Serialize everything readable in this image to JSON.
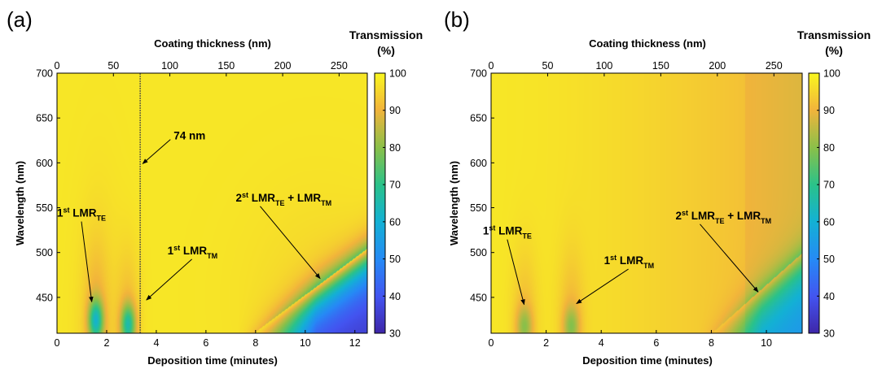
{
  "chart_data": [
    {
      "type": "heatmap",
      "panel_label": "(a)",
      "top_axis_title": "Coating thickness (nm)",
      "top_ticks": [
        "0",
        "50",
        "100",
        "150",
        "200",
        "250"
      ],
      "top_tick_values": [
        0,
        50,
        100,
        150,
        200,
        250
      ],
      "top_range": [
        0,
        275
      ],
      "xlabel": "Deposition time (minutes)",
      "x_ticks": [
        "0",
        "2",
        "4",
        "6",
        "8",
        "10",
        "12"
      ],
      "x_tick_values": [
        0,
        2,
        4,
        6,
        8,
        10,
        12
      ],
      "xlim": [
        0,
        12.5
      ],
      "ylabel": "Wavelength (nm)",
      "y_ticks": [
        "450",
        "500",
        "550",
        "600",
        "650",
        "700"
      ],
      "y_tick_values": [
        450,
        500,
        550,
        600,
        650,
        700
      ],
      "ylim": [
        410,
        700
      ],
      "colorbar_title_line1": "Transmission",
      "colorbar_title_line2": "(%)",
      "colorbar_ticks": [
        "30",
        "40",
        "50",
        "60",
        "70",
        "80",
        "90",
        "100"
      ],
      "colorbar_range": [
        30,
        100
      ],
      "vertical_line_x": 3.35,
      "annotations": [
        {
          "parts": [
            [
              "1",
              ""
            ],
            [
              "st",
              "sup"
            ],
            [
              " LMR",
              ""
            ],
            [
              "TE",
              "sub"
            ]
          ],
          "text_x": 0.0,
          "text_y": 540,
          "arrow_to_x": 1.4,
          "arrow_to_y": 445
        },
        {
          "parts": [
            [
              "74 nm",
              ""
            ]
          ],
          "text_x": 4.7,
          "text_y": 626,
          "arrow_to_x": 3.45,
          "arrow_to_y": 599
        },
        {
          "parts": [
            [
              "1",
              ""
            ],
            [
              "st",
              "sup"
            ],
            [
              " LMR",
              ""
            ],
            [
              "TM",
              "sub"
            ]
          ],
          "text_x": 4.45,
          "text_y": 498,
          "arrow_to_x": 3.6,
          "arrow_to_y": 447
        },
        {
          "parts": [
            [
              "2",
              ""
            ],
            [
              "st",
              "sup"
            ],
            [
              " LMR",
              ""
            ],
            [
              "TE",
              "sub"
            ],
            [
              " + LMR",
              ""
            ],
            [
              "TM",
              "sub"
            ]
          ],
          "text_x": 7.2,
          "text_y": 557,
          "arrow_to_x": 10.6,
          "arrow_to_y": 471
        }
      ],
      "features": [
        {
          "kind": "dip",
          "x": 1.55,
          "y": 425,
          "min": 70
        },
        {
          "kind": "dip",
          "x": 2.85,
          "y": 420,
          "min": 72
        },
        {
          "kind": "band",
          "start_x": 7.9,
          "end_x": 12.5,
          "y_at_start": 410,
          "y_at_end": 505,
          "min": 35
        }
      ]
    },
    {
      "type": "heatmap",
      "panel_label": "(b)",
      "top_axis_title": "Coating thickness (nm)",
      "top_ticks": [
        "0",
        "50",
        "100",
        "150",
        "200",
        "250"
      ],
      "top_tick_values": [
        0,
        50,
        100,
        150,
        200,
        250
      ],
      "top_range": [
        0,
        275
      ],
      "xlabel": "Deposition time (minutes)",
      "x_ticks": [
        "0",
        "2",
        "4",
        "6",
        "8",
        "10"
      ],
      "x_tick_values": [
        0,
        2,
        4,
        6,
        8,
        10
      ],
      "xlim": [
        0,
        11.3
      ],
      "ylabel": "Wavelength (nm)",
      "y_ticks": [
        "450",
        "500",
        "550",
        "600",
        "650",
        "700"
      ],
      "y_tick_values": [
        450,
        500,
        550,
        600,
        650,
        700
      ],
      "ylim": [
        410,
        700
      ],
      "colorbar_title_line1": "Transmission",
      "colorbar_title_line2": "(%)",
      "colorbar_ticks": [
        "30",
        "40",
        "50",
        "60",
        "70",
        "80",
        "90",
        "100"
      ],
      "colorbar_range": [
        30,
        100
      ],
      "annotations": [
        {
          "parts": [
            [
              "1",
              ""
            ],
            [
              "st",
              "sup"
            ],
            [
              " LMR",
              ""
            ],
            [
              "TE",
              "sub"
            ]
          ],
          "text_x": -0.3,
          "text_y": 520,
          "arrow_to_x": 1.2,
          "arrow_to_y": 442
        },
        {
          "parts": [
            [
              "1",
              ""
            ],
            [
              "st",
              "sup"
            ],
            [
              " LMR",
              ""
            ],
            [
              "TM",
              "sub"
            ]
          ],
          "text_x": 4.1,
          "text_y": 487,
          "arrow_to_x": 3.1,
          "arrow_to_y": 443
        },
        {
          "parts": [
            [
              "2",
              ""
            ],
            [
              "st",
              "sup"
            ],
            [
              " LMR",
              ""
            ],
            [
              "TE",
              "sub"
            ],
            [
              " + LMR",
              ""
            ],
            [
              "TM",
              "sub"
            ]
          ],
          "text_x": 6.7,
          "text_y": 537,
          "arrow_to_x": 9.7,
          "arrow_to_y": 456
        }
      ],
      "features": [
        {
          "kind": "dip",
          "x": 1.2,
          "y": 418,
          "min": 86
        },
        {
          "kind": "dip",
          "x": 2.9,
          "y": 418,
          "min": 86
        },
        {
          "kind": "band",
          "start_x": 8.0,
          "end_x": 11.3,
          "y_at_start": 410,
          "y_at_end": 500,
          "min": 62
        }
      ]
    }
  ]
}
